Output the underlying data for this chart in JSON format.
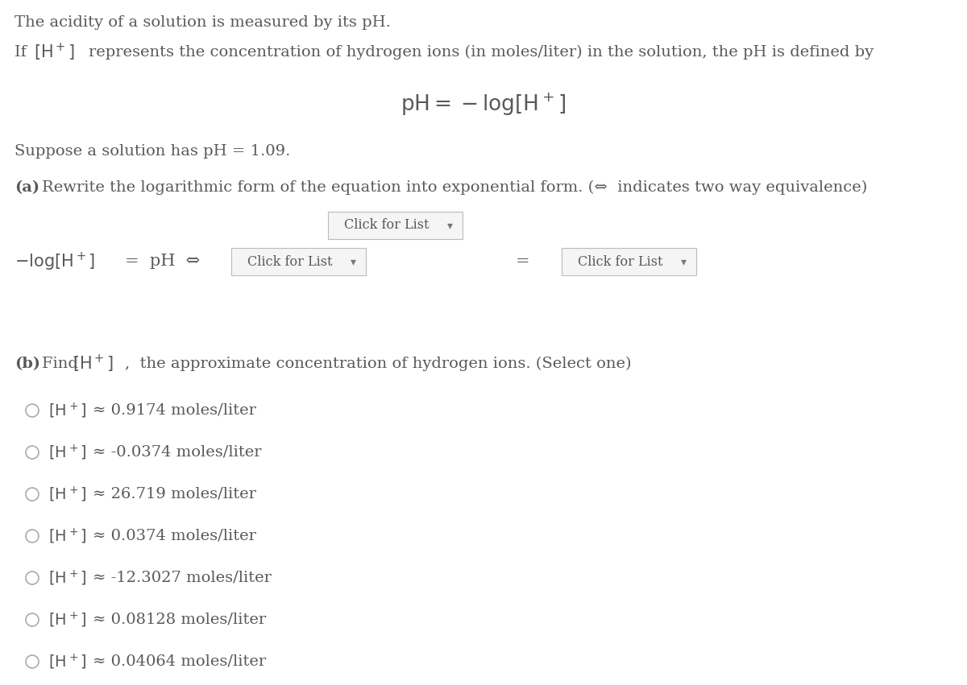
{
  "bg_color": "#ffffff",
  "text_color": "#595959",
  "fig_width": 12.0,
  "fig_height": 8.51,
  "dpi": 100,
  "font_family": "DejaVu Serif",
  "font_size": 14,
  "font_size_formula": 17,
  "font_size_small": 13,
  "options": [
    "≈ 0.9174 moles/liter",
    "≈ -0.0374 moles/liter",
    "≈ 26.719 moles/liter",
    "≈ 0.0374 moles/liter",
    "≈ -12.3027 moles/liter",
    "≈ 0.08128 moles/liter",
    "≈ 0.04064 moles/liter"
  ]
}
